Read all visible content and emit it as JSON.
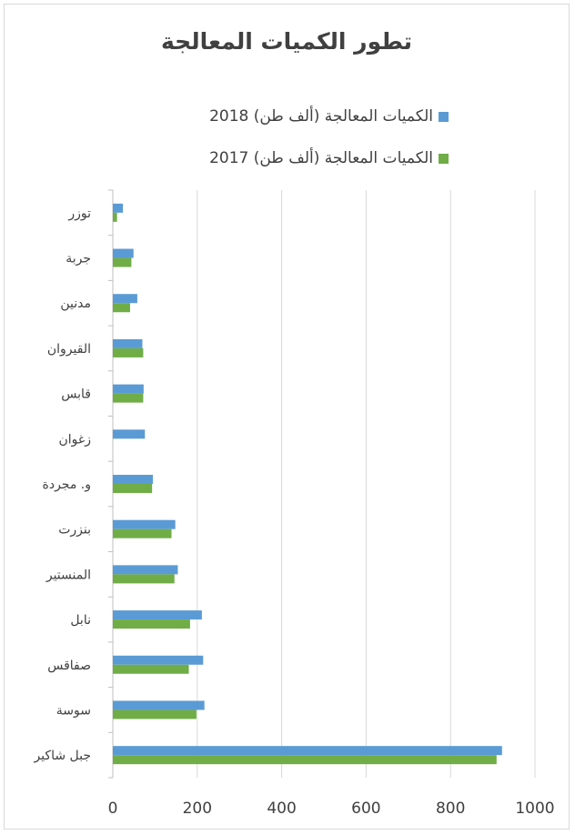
{
  "chart_data": {
    "type": "bar",
    "orientation": "horizontal",
    "title": "تطور الكميات المعالجة",
    "categories": [
      "جبل شاكير",
      "سوسة",
      "صفاقس",
      "نابل",
      "المنستير",
      "بنزرت",
      "و. مجردة",
      "زغوان",
      "قابس",
      "القيروان",
      "مدنين",
      "جربة",
      "توزر"
    ],
    "series": [
      {
        "name": "الكميات المعالجة (ألف طن) 2018",
        "color": "#5b9bd5",
        "values": [
          922,
          217,
          214,
          211,
          154,
          148,
          95,
          76,
          73,
          70,
          58,
          49,
          24
        ]
      },
      {
        "name": "الكميات المعالجة (ألف طن) 2017",
        "color": "#70ad47",
        "values": [
          909,
          198,
          180,
          183,
          146,
          139,
          93,
          0,
          72,
          72,
          41,
          44,
          10
        ]
      }
    ],
    "xlim": [
      0,
      1000
    ],
    "xticks": [
      0,
      200,
      400,
      600,
      800,
      1000
    ],
    "grid": "vertical",
    "legend_position": "top"
  }
}
